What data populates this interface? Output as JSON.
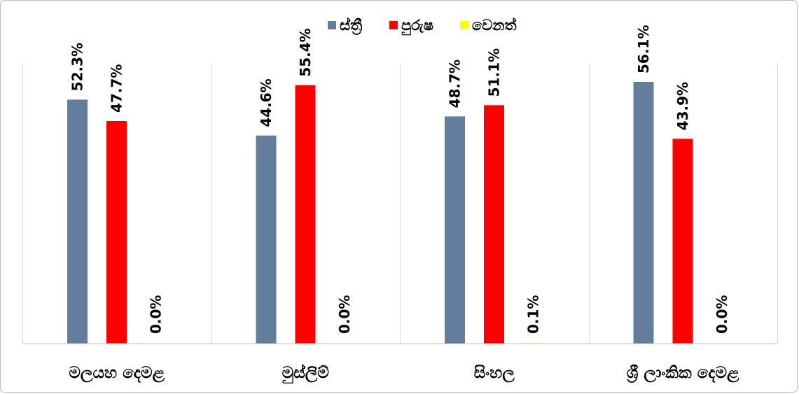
{
  "chart_data": {
    "type": "bar",
    "title": "",
    "xlabel": "",
    "ylabel": "",
    "ylim": [
      0,
      60
    ],
    "grid": false,
    "legend_position": "top-center",
    "categories": [
      "මලයහ දෙමළ",
      "මුස්ලිම්",
      "සිංහල",
      "ශ්‍රී ලාංකික දෙමළ"
    ],
    "series": [
      {
        "name": "ස්ත්‍රී",
        "color": "#647d9c",
        "values": [
          52.3,
          44.6,
          48.7,
          56.1
        ],
        "labels": [
          "52.3%",
          "44.6%",
          "48.7%",
          "56.1%"
        ]
      },
      {
        "name": "පුරුෂ",
        "color": "#ff0000",
        "values": [
          47.7,
          55.4,
          51.1,
          43.9
        ],
        "labels": [
          "47.7%",
          "55.4%",
          "51.1%",
          "43.9%"
        ]
      },
      {
        "name": "වෙනත්",
        "color": "#ffff00",
        "values": [
          0.0,
          0.0,
          0.1,
          0.0
        ],
        "labels": [
          "0.0%",
          "0.0%",
          "0.1%",
          "0.0%"
        ]
      }
    ]
  }
}
